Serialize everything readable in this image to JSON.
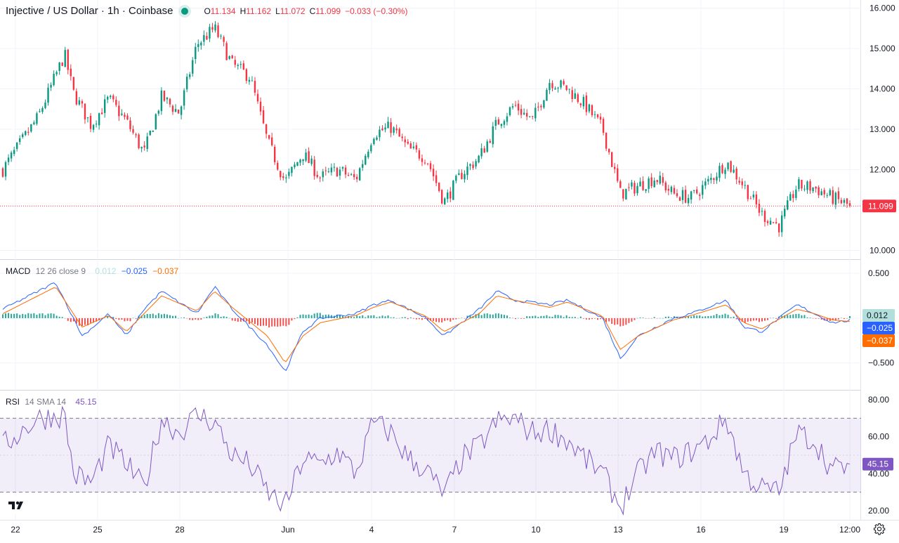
{
  "header": {
    "symbol_title": "Injective / US Dollar · 1h · Coinbase",
    "ohlc": [
      {
        "label": "O",
        "value": "11.134"
      },
      {
        "label": "H",
        "value": "11.162"
      },
      {
        "label": "L",
        "value": "11.072"
      },
      {
        "label": "C",
        "value": "11.099"
      }
    ],
    "change": "−0.033 (−0.30%)"
  },
  "colors": {
    "up": "#089981",
    "down": "#f23645",
    "macd_line": "#2962ff",
    "signal_line": "#ff6d00",
    "rsi_line": "#7e57c2",
    "hist_up": "#26a69a",
    "hist_down": "#ef5350"
  },
  "macd": {
    "label": "MACD",
    "params": "12 26 close 9",
    "hist_value": "0.012",
    "macd_value": "−0.025",
    "signal_value": "−0.037"
  },
  "rsi": {
    "label": "RSI",
    "params": "14 SMA 14",
    "value": "45.15"
  },
  "icons": {
    "logo": "tradingview-logo-icon",
    "settings": "gear-icon"
  },
  "chart_data": {
    "type": "candlestick",
    "title": "Injective / US Dollar · 1h · Coinbase",
    "last_price": 11.099,
    "price_tag": "11.099",
    "price_axis": {
      "ticks": [
        "16.000",
        "15.000",
        "14.000",
        "13.000",
        "12.000",
        "10.000"
      ],
      "range": [
        10,
        16
      ]
    },
    "x_tick_labels": [
      "22",
      "25",
      "28",
      "Jun",
      "4",
      "7",
      "10",
      "13",
      "16",
      "19",
      "12:00"
    ],
    "price_path": [
      [
        0,
        12.0
      ],
      [
        2,
        13.3
      ],
      [
        3.5,
        14.85
      ],
      [
        4,
        13.9
      ],
      [
        5,
        13.1
      ],
      [
        6,
        13.75
      ],
      [
        7,
        13.2
      ],
      [
        8,
        12.4
      ],
      [
        9,
        13.8
      ],
      [
        10,
        13.4
      ],
      [
        11,
        15.1
      ],
      [
        12,
        15.5
      ],
      [
        13,
        14.6
      ],
      [
        14,
        14.3
      ],
      [
        15,
        12.7
      ],
      [
        16,
        11.7
      ],
      [
        17,
        12.4
      ],
      [
        18,
        11.8
      ],
      [
        19,
        12.0
      ],
      [
        20,
        11.75
      ],
      [
        21,
        12.9
      ],
      [
        22,
        13.05
      ],
      [
        23,
        12.5
      ],
      [
        24,
        12.3
      ],
      [
        25,
        11.2
      ],
      [
        26,
        11.9
      ],
      [
        27,
        12.3
      ],
      [
        28,
        13.15
      ],
      [
        29,
        13.6
      ],
      [
        30,
        13.2
      ],
      [
        31,
        14.2
      ],
      [
        32,
        14.0
      ],
      [
        33,
        13.6
      ],
      [
        34,
        13.0
      ],
      [
        35,
        11.4
      ],
      [
        36,
        11.6
      ],
      [
        37,
        11.8
      ],
      [
        38,
        11.4
      ],
      [
        39,
        11.3
      ],
      [
        40,
        11.7
      ],
      [
        41,
        12.2
      ],
      [
        42,
        11.6
      ],
      [
        43,
        10.9
      ],
      [
        44,
        10.6
      ],
      [
        45,
        11.6
      ],
      [
        46,
        11.55
      ],
      [
        47,
        11.3
      ],
      [
        48,
        11.099
      ]
    ],
    "macd": {
      "axis_ticks": [
        "0.500",
        "−0.500"
      ],
      "range": [
        -0.8,
        0.65
      ],
      "macd_path": [
        [
          0,
          0.1
        ],
        [
          3,
          0.4
        ],
        [
          4.5,
          -0.2
        ],
        [
          6,
          0.05
        ],
        [
          7,
          -0.2
        ],
        [
          8,
          0.1
        ],
        [
          9,
          0.3
        ],
        [
          11,
          0.05
        ],
        [
          12,
          0.35
        ],
        [
          13,
          0.1
        ],
        [
          15,
          -0.3
        ],
        [
          16,
          -0.6
        ],
        [
          17,
          -0.15
        ],
        [
          18,
          0.0
        ],
        [
          20,
          0.05
        ],
        [
          21,
          0.15
        ],
        [
          22,
          0.2
        ],
        [
          24,
          0.0
        ],
        [
          25,
          -0.2
        ],
        [
          27,
          0.1
        ],
        [
          28,
          0.3
        ],
        [
          29,
          0.2
        ],
        [
          31,
          0.15
        ],
        [
          32,
          0.2
        ],
        [
          34,
          0.0
        ],
        [
          35,
          -0.45
        ],
        [
          36,
          -0.2
        ],
        [
          38,
          0.0
        ],
        [
          39,
          0.05
        ],
        [
          41,
          0.2
        ],
        [
          42,
          -0.1
        ],
        [
          43,
          -0.15
        ],
        [
          45,
          0.15
        ],
        [
          46,
          0.05
        ],
        [
          47,
          -0.05
        ],
        [
          48,
          -0.025
        ]
      ],
      "signal_path": [
        [
          0,
          0.05
        ],
        [
          3,
          0.35
        ],
        [
          4.5,
          -0.1
        ],
        [
          6,
          0.03
        ],
        [
          7,
          -0.15
        ],
        [
          8,
          0.05
        ],
        [
          9,
          0.25
        ],
        [
          11,
          0.08
        ],
        [
          12,
          0.3
        ],
        [
          13,
          0.12
        ],
        [
          15,
          -0.2
        ],
        [
          16,
          -0.5
        ],
        [
          17,
          -0.2
        ],
        [
          18,
          -0.05
        ],
        [
          20,
          0.03
        ],
        [
          21,
          0.12
        ],
        [
          22,
          0.18
        ],
        [
          24,
          0.02
        ],
        [
          25,
          -0.15
        ],
        [
          27,
          0.05
        ],
        [
          28,
          0.25
        ],
        [
          29,
          0.2
        ],
        [
          31,
          0.12
        ],
        [
          32,
          0.18
        ],
        [
          34,
          0.02
        ],
        [
          35,
          -0.35
        ],
        [
          36,
          -0.2
        ],
        [
          38,
          -0.02
        ],
        [
          39,
          0.03
        ],
        [
          41,
          0.15
        ],
        [
          42,
          -0.05
        ],
        [
          43,
          -0.12
        ],
        [
          45,
          0.1
        ],
        [
          46,
          0.05
        ],
        [
          47,
          -0.02
        ],
        [
          48,
          -0.037
        ]
      ]
    },
    "rsi": {
      "axis_ticks": [
        "80.00",
        "60.00",
        "40.00",
        "20.00"
      ],
      "range": [
        15,
        85
      ],
      "bands": [
        30,
        70
      ],
      "last": 45.15,
      "rsi_path": [
        [
          0,
          55
        ],
        [
          2,
          70
        ],
        [
          3.5,
          72
        ],
        [
          4,
          40
        ],
        [
          5,
          35
        ],
        [
          6,
          55
        ],
        [
          7,
          45
        ],
        [
          8,
          32
        ],
        [
          9,
          70
        ],
        [
          10,
          62
        ],
        [
          11,
          72
        ],
        [
          12,
          68
        ],
        [
          13,
          50
        ],
        [
          14,
          45
        ],
        [
          15,
          30
        ],
        [
          16,
          22
        ],
        [
          17,
          48
        ],
        [
          18,
          45
        ],
        [
          19,
          52
        ],
        [
          20,
          40
        ],
        [
          21,
          68
        ],
        [
          22,
          62
        ],
        [
          23,
          48
        ],
        [
          24,
          42
        ],
        [
          25,
          28
        ],
        [
          26,
          48
        ],
        [
          27,
          55
        ],
        [
          28,
          68
        ],
        [
          29,
          70
        ],
        [
          30,
          62
        ],
        [
          31,
          64
        ],
        [
          32,
          58
        ],
        [
          33,
          48
        ],
        [
          34,
          40
        ],
        [
          35,
          22
        ],
        [
          36,
          40
        ],
        [
          37,
          52
        ],
        [
          38,
          48
        ],
        [
          39,
          52
        ],
        [
          40,
          58
        ],
        [
          41,
          70
        ],
        [
          42,
          40
        ],
        [
          43,
          32
        ],
        [
          44,
          30
        ],
        [
          45,
          62
        ],
        [
          46,
          58
        ],
        [
          47,
          42
        ],
        [
          48,
          45.15
        ]
      ]
    }
  }
}
